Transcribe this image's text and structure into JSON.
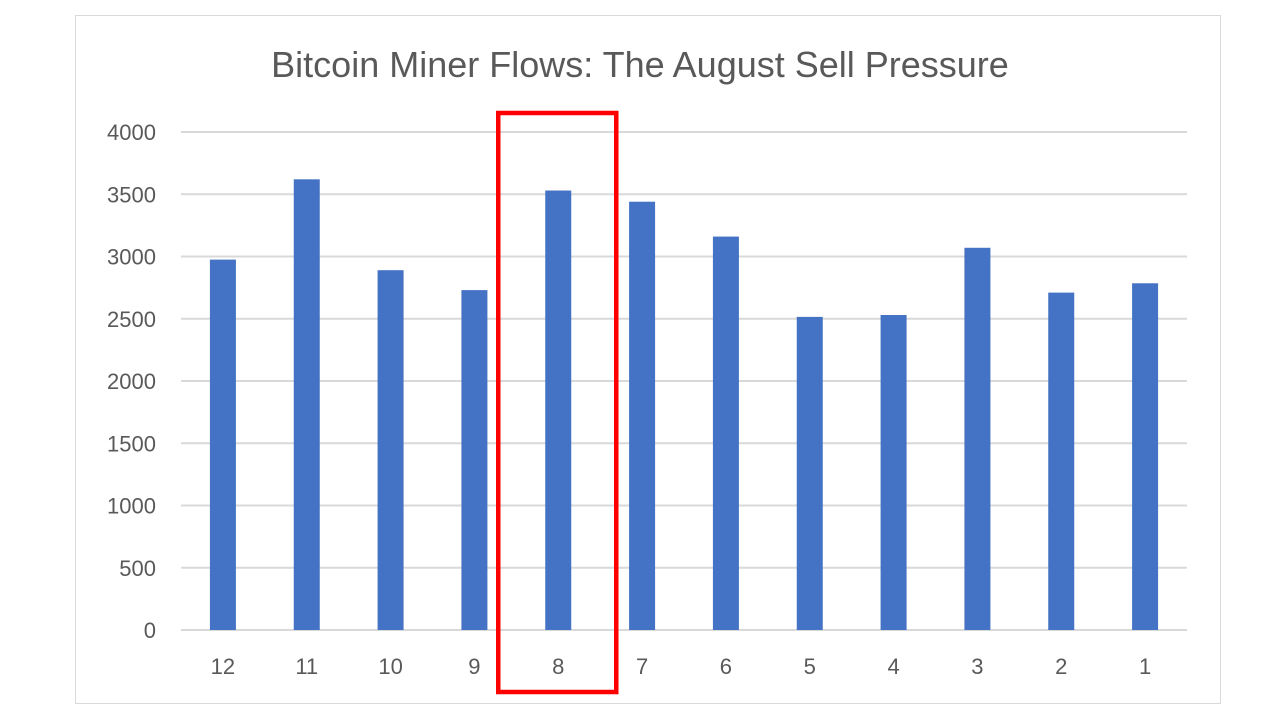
{
  "chart_data": {
    "type": "bar",
    "title": "Bitcoin Miner Flows: The August Sell Pressure",
    "xlabel": "",
    "ylabel": "",
    "categories": [
      "12",
      "11",
      "10",
      "9",
      "8",
      "7",
      "6",
      "5",
      "4",
      "3",
      "2",
      "1"
    ],
    "values": [
      2975,
      3620,
      2890,
      2730,
      3530,
      3440,
      3160,
      2515,
      2530,
      3070,
      2710,
      2785
    ],
    "ylim": [
      0,
      4000
    ],
    "yticks": [
      "0",
      "500",
      "1000",
      "1500",
      "2000",
      "2500",
      "3000",
      "3500",
      "4000"
    ],
    "grid": true,
    "bar_color": "#4472c4",
    "highlight": {
      "category": "8",
      "color": "#ff0000"
    }
  }
}
